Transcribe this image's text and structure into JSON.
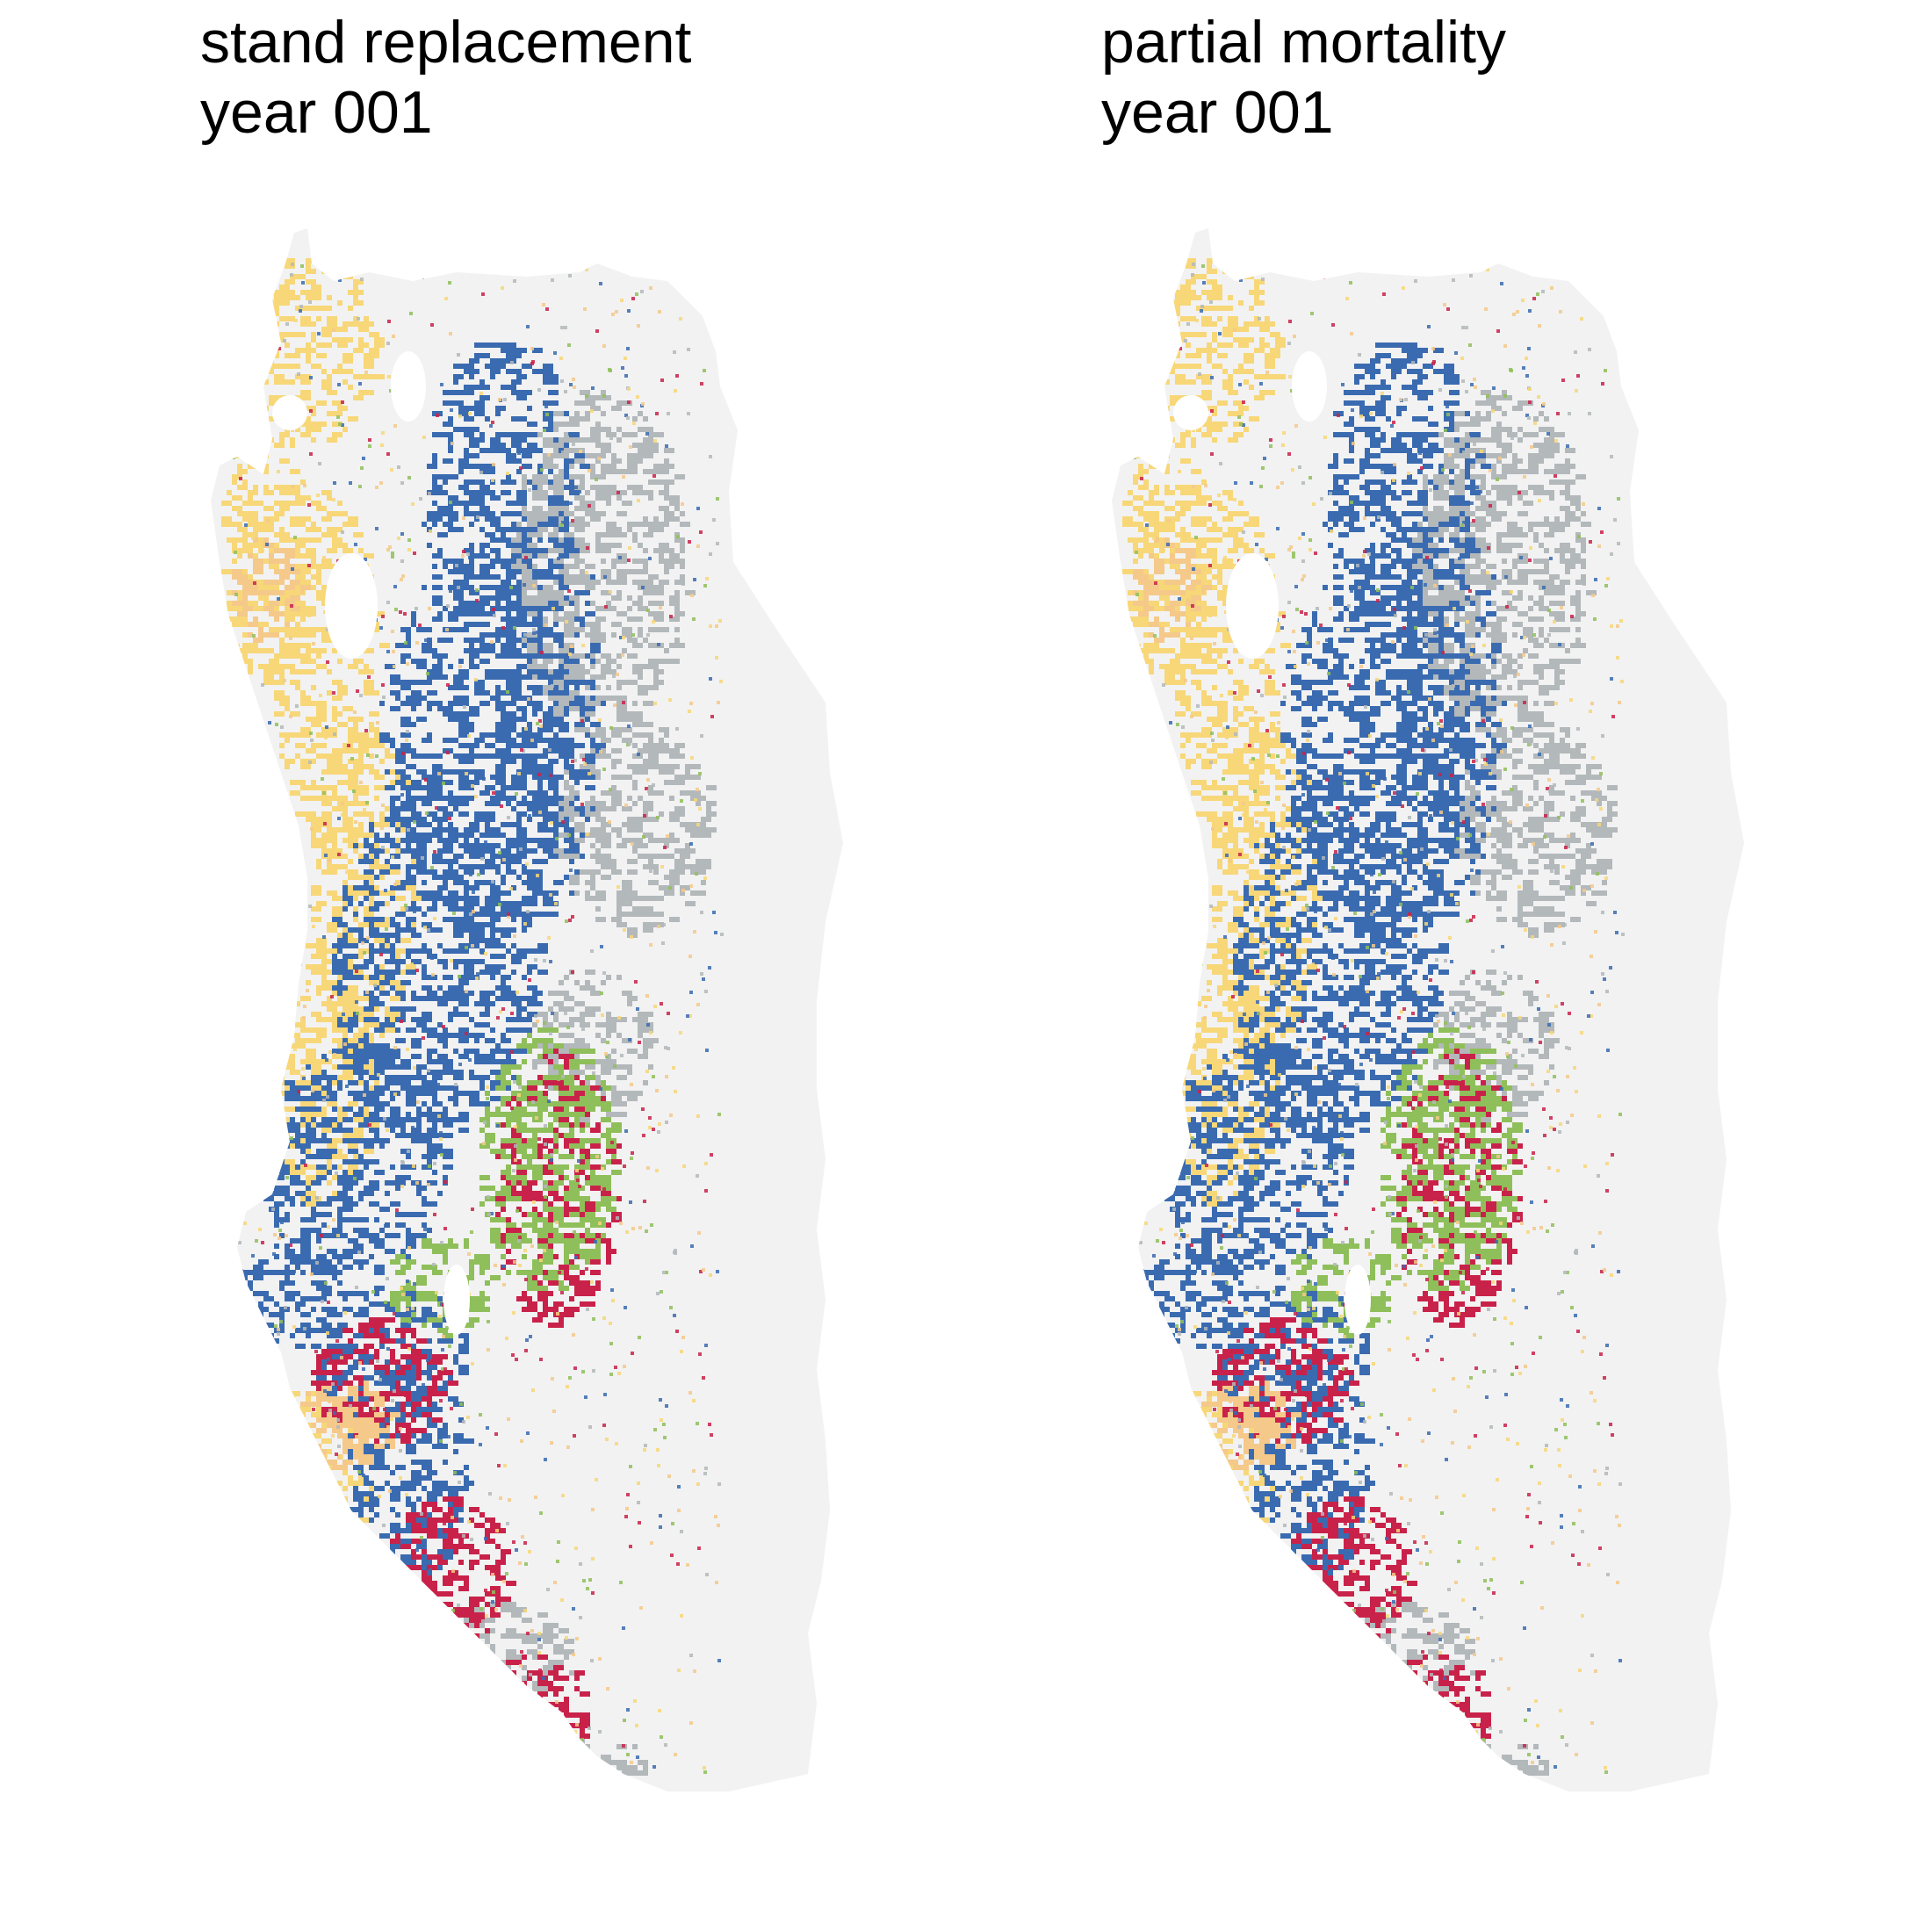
{
  "panels": [
    {
      "title": "stand replacement",
      "subtitle": "year 001"
    },
    {
      "title": "partial mortality",
      "subtitle": "year 001"
    }
  ],
  "colors": {
    "background_region": "#f2f2f2",
    "blue": "#3a6bb0",
    "yellow": "#f7d778",
    "peach": "#f5c98a",
    "grey": "#b3b8bb",
    "green": "#8fbf5a",
    "red": "#c9224a"
  }
}
